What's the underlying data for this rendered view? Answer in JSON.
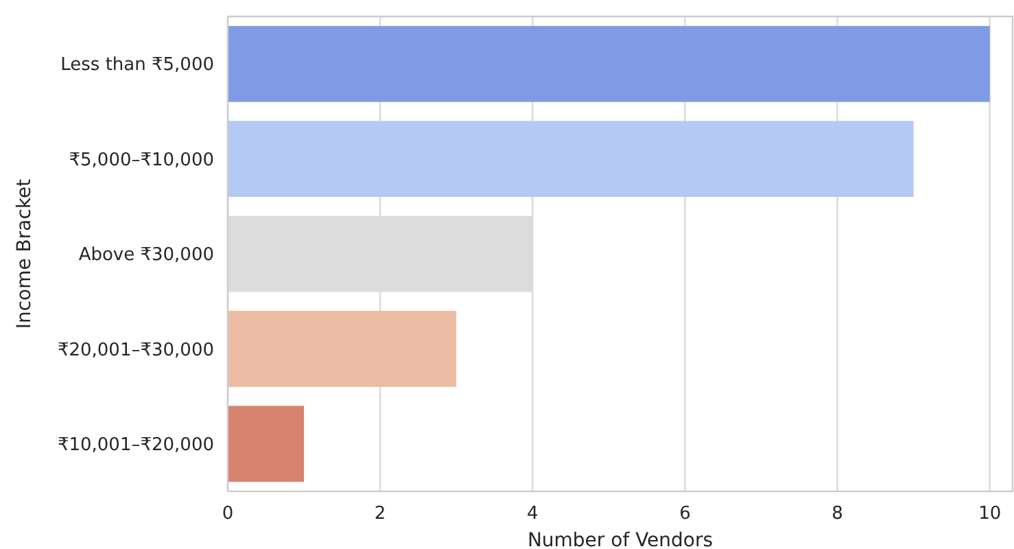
{
  "chart_data": {
    "type": "bar",
    "orientation": "horizontal",
    "xlabel": "Number of Vendors",
    "ylabel": "Income Bracket",
    "categories": [
      "Less than ₹5,000",
      "₹5,000–₹10,000",
      "Above ₹30,000",
      "₹20,001–₹30,000",
      "₹10,001–₹20,000"
    ],
    "values": [
      10,
      9,
      4,
      3,
      1
    ],
    "colors": [
      "#7f9be6",
      "#b4c9f3",
      "#dcdcdc",
      "#ecbba4",
      "#d68370"
    ],
    "xlim": [
      0,
      10.3
    ],
    "xticks": [
      0,
      2,
      4,
      6,
      8,
      10
    ],
    "grid": "x"
  }
}
